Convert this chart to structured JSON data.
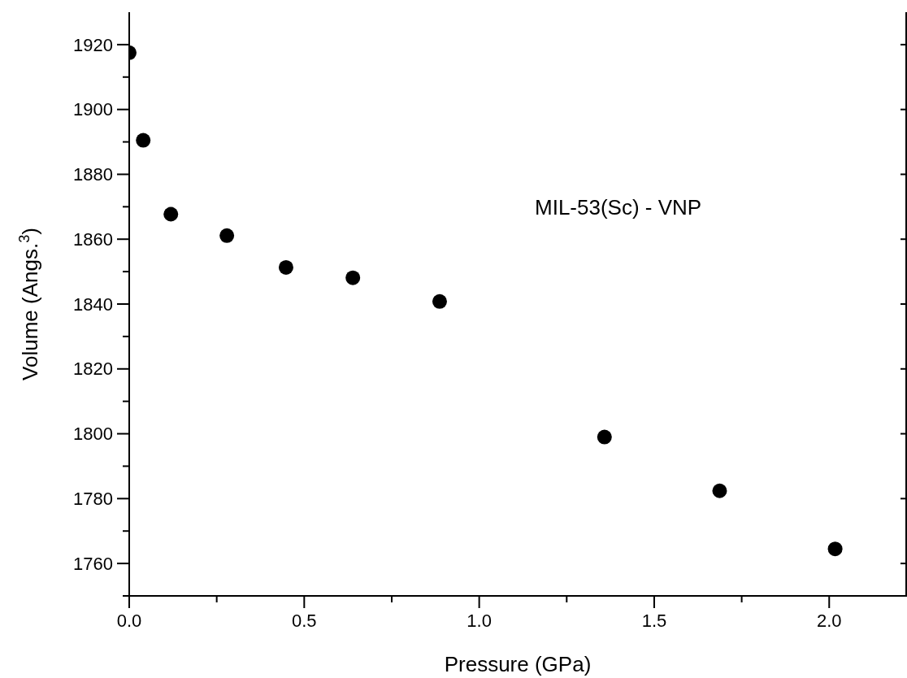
{
  "chart_data": {
    "type": "scatter",
    "xlabel": "Pressure (GPa)",
    "ylabel": "Volume (Angs.$^{3}$)",
    "annotations": [
      "MIL-53(Sc) - VNP"
    ],
    "x": [
      0,
      0.04,
      0.119,
      0.279,
      0.448,
      0.639,
      0.887,
      1.358,
      1.687,
      2.017
    ],
    "series": [
      {
        "color": "#000000",
        "values": [
          1917.5,
          1890.5,
          1867.7,
          1861.1,
          1851.3,
          1848.1,
          1840.8,
          1799.0,
          1782.4,
          1764.5
        ]
      }
    ],
    "xlim": [
      0,
      2.22
    ],
    "ylim": [
      1750,
      1930
    ],
    "xticks": [
      {
        "value": 0,
        "label": "0.0"
      },
      {
        "value": 0.25,
        "label": null
      },
      {
        "value": 0.5,
        "label": "0.5"
      },
      {
        "value": 0.75,
        "label": null
      },
      {
        "value": 1,
        "label": "1.0"
      },
      {
        "value": 1.25,
        "label": null
      },
      {
        "value": 1.5,
        "label": "1.5"
      },
      {
        "value": 1.75,
        "label": null
      },
      {
        "value": 2,
        "label": "2.0"
      }
    ],
    "yticks": [
      {
        "value": 1750,
        "label": null
      },
      1760,
      {
        "value": 1770,
        "label": null
      },
      1780,
      {
        "value": 1790,
        "label": null
      },
      1800,
      {
        "value": 1810,
        "label": null
      },
      1820,
      {
        "value": 1830,
        "label": null
      },
      1840,
      {
        "value": 1850,
        "label": null
      },
      1860,
      {
        "value": 1870,
        "label": null
      },
      1880,
      {
        "value": 1890,
        "label": null
      },
      1900,
      {
        "value": 1910,
        "label": null
      },
      1920
    ],
    "grid": false,
    "legend": false,
    "marker": "circle"
  }
}
